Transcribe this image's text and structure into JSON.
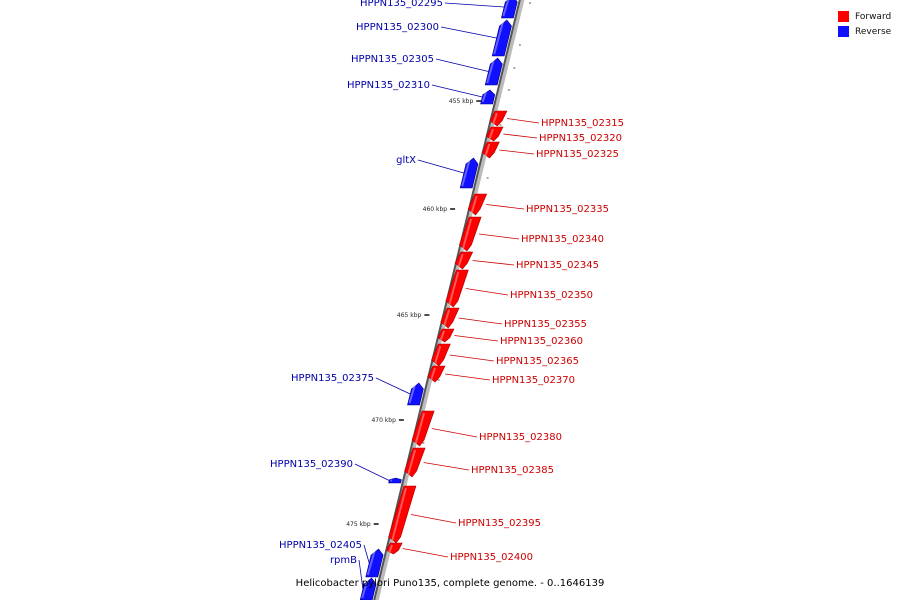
{
  "legend": {
    "forward_label": "Forward",
    "reverse_label": "Reverse",
    "forward_color": "#ff0000",
    "reverse_color": "#1010ff"
  },
  "caption": "Helicobacter pylori Puno135, complete genome. - 0..1646139",
  "label_colors": {
    "forward": "#cc0000",
    "reverse": "#0000aa"
  },
  "scale_labels": [
    "455 kbp",
    "460 kbp",
    "465 kbp",
    "470 kbp",
    "475 kbp"
  ],
  "genes": [
    {
      "label": "HPPN135_02295",
      "strand": "reverse"
    },
    {
      "label": "HPPN135_02300",
      "strand": "reverse"
    },
    {
      "label": "HPPN135_02305",
      "strand": "reverse"
    },
    {
      "label": "HPPN135_02310",
      "strand": "reverse"
    },
    {
      "label": "HPPN135_02315",
      "strand": "forward"
    },
    {
      "label": "HPPN135_02320",
      "strand": "forward"
    },
    {
      "label": "HPPN135_02325",
      "strand": "forward"
    },
    {
      "label": "gltX",
      "strand": "reverse"
    },
    {
      "label": "HPPN135_02335",
      "strand": "forward"
    },
    {
      "label": "HPPN135_02340",
      "strand": "forward"
    },
    {
      "label": "HPPN135_02345",
      "strand": "forward"
    },
    {
      "label": "HPPN135_02350",
      "strand": "forward"
    },
    {
      "label": "HPPN135_02355",
      "strand": "forward"
    },
    {
      "label": "HPPN135_02360",
      "strand": "forward"
    },
    {
      "label": "HPPN135_02365",
      "strand": "forward"
    },
    {
      "label": "HPPN135_02370",
      "strand": "forward"
    },
    {
      "label": "HPPN135_02375",
      "strand": "reverse"
    },
    {
      "label": "HPPN135_02380",
      "strand": "forward"
    },
    {
      "label": "HPPN135_02385",
      "strand": "forward"
    },
    {
      "label": "HPPN135_02390",
      "strand": "reverse"
    },
    {
      "label": "HPPN135_02395",
      "strand": "forward"
    },
    {
      "label": "HPPN135_02400",
      "strand": "forward"
    },
    {
      "label": "HPPN135_02405",
      "strand": "reverse"
    },
    {
      "label": "rpmB",
      "strand": "reverse"
    }
  ]
}
